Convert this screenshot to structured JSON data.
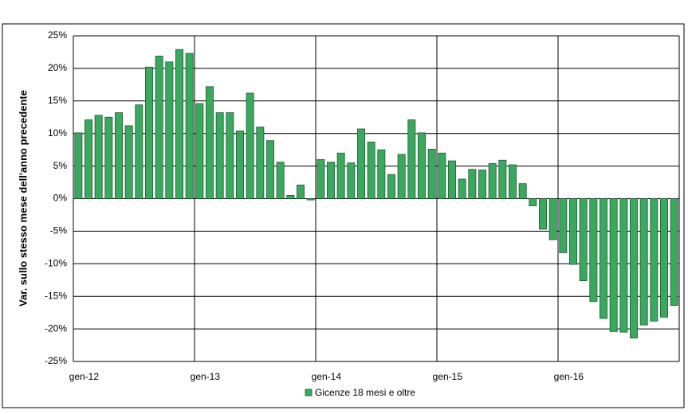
{
  "chart_data": {
    "type": "bar",
    "y_label": "Var. sullo stesso mese dell'anno precedente",
    "categories": [
      "gen-12",
      null,
      null,
      null,
      null,
      null,
      null,
      null,
      null,
      null,
      null,
      null,
      "gen-13",
      null,
      null,
      null,
      null,
      null,
      null,
      null,
      null,
      null,
      null,
      null,
      "gen-14",
      null,
      null,
      null,
      null,
      null,
      null,
      null,
      null,
      null,
      null,
      null,
      "gen-15",
      null,
      null,
      null,
      null,
      null,
      null,
      null,
      null,
      null,
      null,
      null,
      "gen-16",
      null,
      null,
      null,
      null,
      null,
      null,
      null,
      null,
      null,
      null,
      null
    ],
    "series": [
      {
        "name": "Gicenze 18 mesi e oltre",
        "color": "#3aa85e",
        "values": [
          10.1,
          12.1,
          12.8,
          12.5,
          13.2,
          11.2,
          14.4,
          20.2,
          21.9,
          21.0,
          22.9,
          22.3,
          14.6,
          17.2,
          13.2,
          13.2,
          10.4,
          16.2,
          11.0,
          8.9,
          5.6,
          0.5,
          2.1,
          -0.2,
          6.0,
          5.6,
          7.0,
          5.5,
          10.7,
          8.7,
          7.5,
          3.7,
          6.8,
          12.1,
          10.1,
          7.6,
          7.0,
          5.8,
          3.0,
          4.5,
          4.4,
          5.4,
          5.9,
          5.2,
          2.3,
          -1.1,
          -4.7,
          -6.3,
          -8.3,
          -10.1,
          -12.6,
          -15.8,
          -18.4,
          -20.4,
          -20.5,
          -21.4,
          -19.4,
          -18.8,
          -18.2,
          -16.4
        ]
      }
    ],
    "ylim": [
      -25,
      25
    ],
    "yticks": [
      {
        "value": -25,
        "label": "-25%"
      },
      {
        "value": -20,
        "label": "-20%"
      },
      {
        "value": -15,
        "label": "-15%"
      },
      {
        "value": -10,
        "label": "-10%"
      },
      {
        "value": -5,
        "label": "-5%"
      },
      {
        "value": 0,
        "label": "0%"
      },
      {
        "value": 5,
        "label": "5%"
      },
      {
        "value": 10,
        "label": "10%"
      },
      {
        "value": 15,
        "label": "15%"
      },
      {
        "value": 20,
        "label": "20%"
      },
      {
        "value": 25,
        "label": "25%"
      }
    ],
    "grid": true,
    "legend": "bottom"
  }
}
